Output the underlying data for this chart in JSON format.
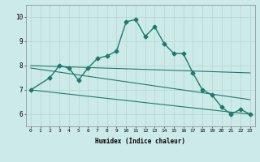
{
  "title": "",
  "xlabel": "Humidex (Indice chaleur)",
  "xlim": [
    -0.5,
    23.5
  ],
  "ylim": [
    5.5,
    10.5
  ],
  "yticks": [
    6,
    7,
    8,
    9,
    10
  ],
  "xticks": [
    0,
    1,
    2,
    3,
    4,
    5,
    6,
    7,
    8,
    9,
    10,
    11,
    12,
    13,
    14,
    15,
    16,
    17,
    18,
    19,
    20,
    21,
    22,
    23
  ],
  "bg_color": "#cceae8",
  "grid_color": "#b8d8d6",
  "line_color": "#1e7a6e",
  "series": [
    {
      "x": [
        0,
        2,
        3,
        4,
        5,
        6,
        7,
        8,
        9,
        10,
        11,
        12,
        13,
        14,
        15,
        16,
        17,
        18,
        19,
        20,
        21,
        22,
        23
      ],
      "y": [
        7.0,
        7.5,
        8.0,
        7.9,
        7.4,
        7.9,
        8.3,
        8.4,
        8.6,
        9.8,
        9.9,
        9.2,
        9.6,
        8.9,
        8.5,
        8.5,
        7.7,
        7.0,
        6.8,
        6.3,
        6.0,
        6.2,
        6.0
      ],
      "marker": "D",
      "markersize": 2.5,
      "linewidth": 1.0
    },
    {
      "x": [
        0,
        23
      ],
      "y": [
        8.0,
        7.7
      ],
      "marker": null,
      "linewidth": 0.8
    },
    {
      "x": [
        0,
        23
      ],
      "y": [
        7.9,
        6.6
      ],
      "marker": null,
      "linewidth": 0.8
    },
    {
      "x": [
        0,
        23
      ],
      "y": [
        7.0,
        6.0
      ],
      "marker": null,
      "linewidth": 0.8
    }
  ]
}
